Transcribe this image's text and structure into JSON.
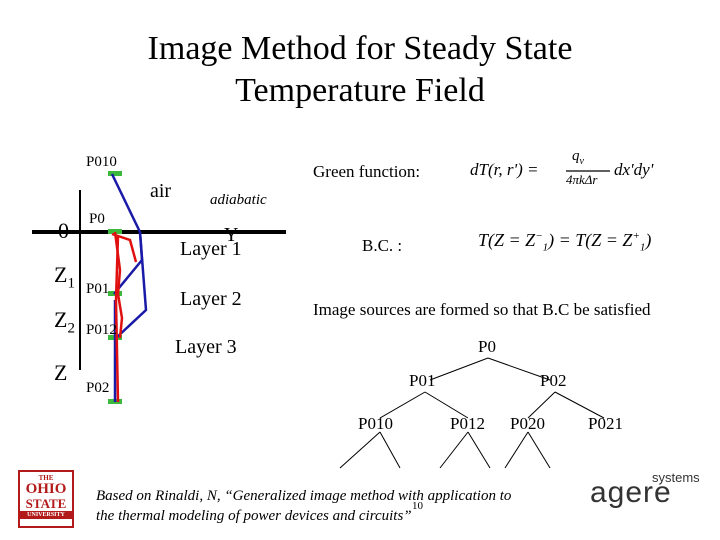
{
  "title": {
    "line1": "Image Method for Steady State",
    "line2": "Temperature Field"
  },
  "layers": {
    "air": "air",
    "adiabatic": "adiabatic",
    "y_axis": "Y",
    "layer1": "Layer 1",
    "layer2": "Layer 2",
    "layer3": "Layer 3"
  },
  "depth_labels": {
    "zero": "0",
    "z1": "Z",
    "z1_sub": "1",
    "z2": "Z",
    "z2_sub": "2",
    "z": "Z"
  },
  "points": {
    "p010": "P010",
    "p0": "P0",
    "p01": "P01",
    "p012": "P012",
    "p02": "P02"
  },
  "green_function": {
    "label": "Green function:",
    "lhs": "dT(r, r') =",
    "numerator": "q",
    "numerator_sub": "v",
    "denominator": "4πkΔr",
    "rhs": "dx'dy'"
  },
  "bc": {
    "label": "B.C. :",
    "left": "T(Z = Z",
    "left_sup": "−",
    "left_sub": "1",
    "middle": ") = T(Z = Z",
    "right_sup": "+",
    "right_sub": "1",
    "end": ")"
  },
  "image_sources_note": "Image sources are formed so that B.C be satisfied",
  "tree": {
    "root": "P0",
    "level1": [
      "P01",
      "P02"
    ],
    "level2": [
      "P010",
      "P012",
      "P020",
      "P021"
    ]
  },
  "citation": {
    "line1": "Based on Rinaldi, N, “Generalized image method with application to",
    "line2": "the thermal modeling of power devices and circuits”"
  },
  "page_number": "10",
  "logos": {
    "osu_line1": "THE",
    "osu_line2": "OHIO",
    "osu_line3": "STATE",
    "osu_line4": "UNIVERSITY",
    "agere_main": "agere",
    "agere_sub": "systems"
  },
  "colors": {
    "red": "#e01010",
    "blue": "#1a1aa8",
    "green": "#3cb83c"
  }
}
